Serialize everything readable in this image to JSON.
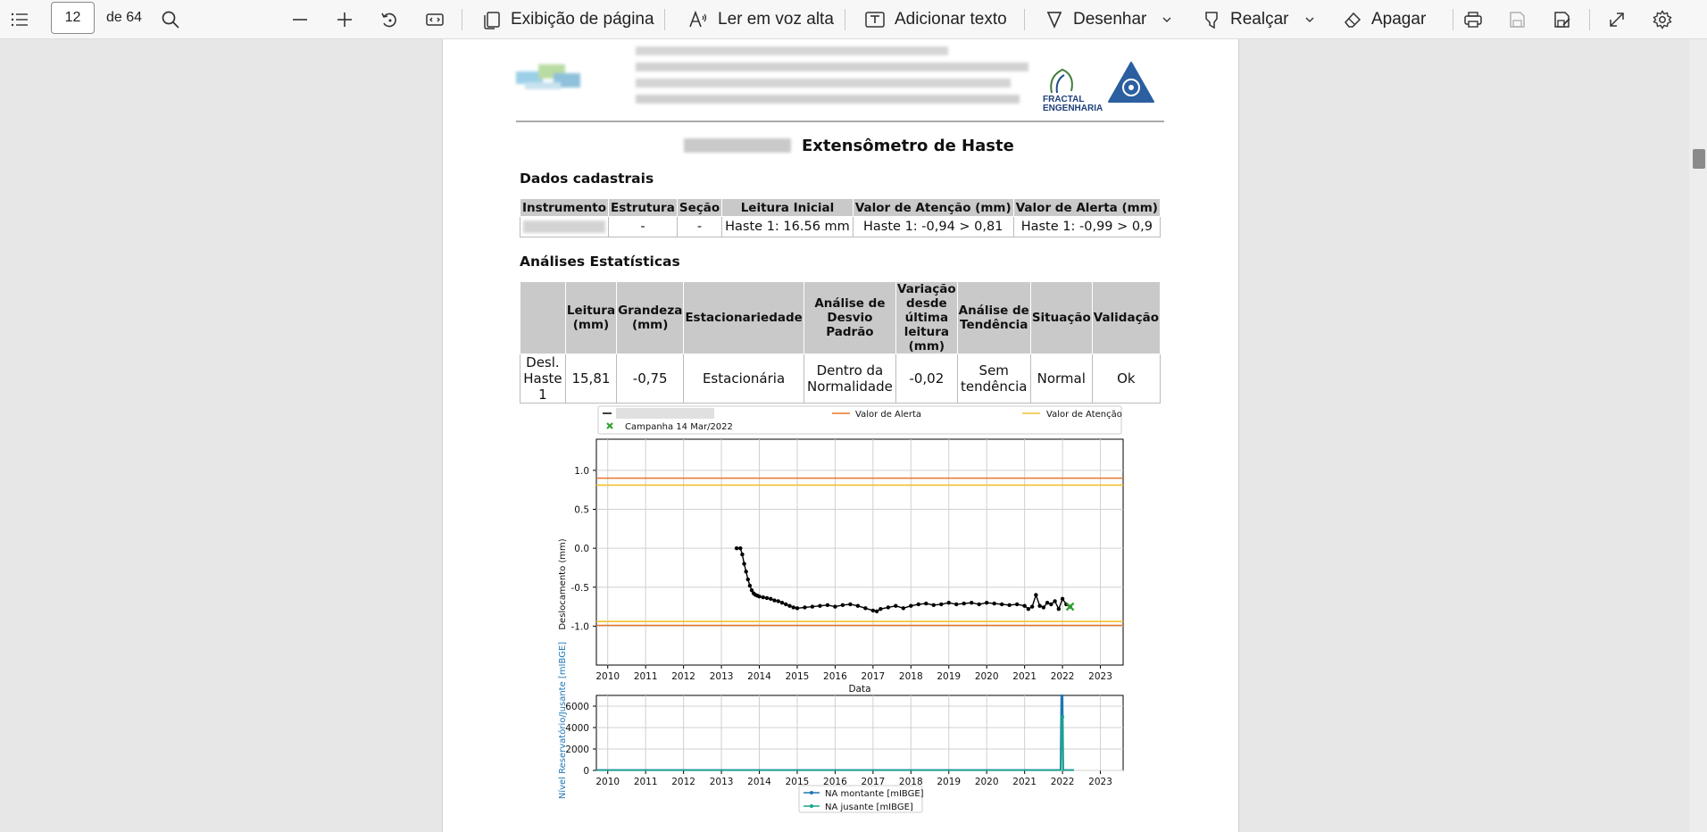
{
  "toolbar": {
    "page_number": "12",
    "page_total": "de 64",
    "page_view_label": "Exibição de página",
    "read_aloud_label": "Ler em voz alta",
    "add_text_label": "Adicionar texto",
    "draw_label": "Desenhar",
    "highlight_label": "Realçar",
    "erase_label": "Apagar",
    "icons": [
      "contents-icon",
      "search-icon",
      "zoom-out-icon",
      "zoom-in-icon",
      "rotate-icon",
      "fit-page-icon",
      "page-view-icon",
      "read-aloud-icon",
      "add-text-icon",
      "draw-icon",
      "highlight-icon",
      "erase-icon",
      "print-icon",
      "save-icon",
      "save-as-icon",
      "fullscreen-icon",
      "settings-icon"
    ]
  },
  "document": {
    "logo_text": [
      "FRACTAL",
      "ENGENHARIA"
    ],
    "title": "Extensômetro de Haste",
    "section_registration": "Dados cadastrais",
    "registration_headers": [
      "Instrumento",
      "Estrutura",
      "Seção",
      "Leitura Inicial",
      "Valor de Atenção (mm)",
      "Valor de Alerta (mm)"
    ],
    "registration_row": [
      "",
      "-",
      "-",
      "Haste 1: 16.56 mm",
      "Haste 1: -0,94 > 0,81",
      "Haste 1: -0,99 > 0,9"
    ],
    "section_stats": "Análises Estatísticas",
    "stats_headers": [
      "",
      "Leitura (mm)",
      "Grandeza (mm)",
      "Estacionariedade",
      "Análise de Desvio Padrão",
      "Variação desde última leitura (mm)",
      "Análise de Tendência",
      "Situação",
      "Validação"
    ],
    "stats_row": [
      "Desl. Haste 1",
      "15,81",
      "-0,75",
      "Estacionária",
      "Dentro da Normalidade",
      "-0,02",
      "Sem tendência",
      "Normal",
      "Ok"
    ]
  },
  "chart_data": [
    {
      "type": "line",
      "xlabel": "Data",
      "ylabel": "Deslocamento (mm)",
      "xlim": [
        2009.7,
        2023.6
      ],
      "ylim": [
        -1.5,
        1.4
      ],
      "xticks": [
        "2010",
        "2011",
        "2012",
        "2013",
        "2014",
        "2015",
        "2016",
        "2017",
        "2018",
        "2019",
        "2020",
        "2021",
        "2022",
        "2023"
      ],
      "yticks": [
        "1.0",
        "0.5",
        "0.0",
        "-0.5",
        "-1.0"
      ],
      "grid": true,
      "legend_position": "top",
      "legend": [
        "Valor de Alerta",
        "Valor de Atenção",
        "Campanha 14 Mar/2022"
      ],
      "colors": {
        "series": "#000000",
        "alert": "#e8762b",
        "attention": "#f2c12e",
        "campaign": "#2ca02c"
      },
      "hlines": {
        "alert": [
          0.9,
          -0.99
        ],
        "attention": [
          0.81,
          -0.94
        ]
      },
      "campaign_point": {
        "x": 2022.2,
        "y": -0.75
      },
      "series": [
        {
          "x": [
            2013.4,
            2013.5,
            2013.55,
            2013.6,
            2013.65,
            2013.7,
            2013.75,
            2013.8,
            2013.85,
            2013.9,
            2013.95,
            2014.0,
            2014.1,
            2014.2,
            2014.3,
            2014.4,
            2014.5,
            2014.6,
            2014.7,
            2014.8,
            2014.9,
            2015.0,
            2015.2,
            2015.4,
            2015.6,
            2015.8,
            2016.0,
            2016.2,
            2016.4,
            2016.6,
            2016.8,
            2017.0,
            2017.1,
            2017.2,
            2017.4,
            2017.6,
            2017.8,
            2018.0,
            2018.2,
            2018.4,
            2018.6,
            2018.8,
            2019.0,
            2019.2,
            2019.4,
            2019.6,
            2019.8,
            2020.0,
            2020.2,
            2020.4,
            2020.6,
            2020.8,
            2021.0,
            2021.1,
            2021.2,
            2021.3,
            2021.4,
            2021.5,
            2021.6,
            2021.7,
            2021.8,
            2021.9,
            2022.0,
            2022.1,
            2022.2
          ],
          "y": [
            0.0,
            0.0,
            -0.08,
            -0.2,
            -0.3,
            -0.4,
            -0.48,
            -0.54,
            -0.58,
            -0.6,
            -0.61,
            -0.62,
            -0.63,
            -0.64,
            -0.65,
            -0.67,
            -0.68,
            -0.7,
            -0.72,
            -0.74,
            -0.76,
            -0.77,
            -0.76,
            -0.75,
            -0.74,
            -0.73,
            -0.75,
            -0.73,
            -0.72,
            -0.74,
            -0.77,
            -0.8,
            -0.81,
            -0.78,
            -0.76,
            -0.74,
            -0.77,
            -0.74,
            -0.72,
            -0.71,
            -0.73,
            -0.72,
            -0.7,
            -0.72,
            -0.71,
            -0.7,
            -0.72,
            -0.7,
            -0.71,
            -0.72,
            -0.73,
            -0.72,
            -0.74,
            -0.78,
            -0.75,
            -0.6,
            -0.74,
            -0.76,
            -0.7,
            -0.72,
            -0.68,
            -0.78,
            -0.65,
            -0.72,
            -0.75
          ]
        }
      ]
    },
    {
      "type": "line",
      "ylabel": "Nível Reservatório/Jusante [mIBGE]",
      "xlim": [
        2009.7,
        2023.6
      ],
      "ylim": [
        0,
        7000
      ],
      "xticks": [
        "2010",
        "2011",
        "2012",
        "2013",
        "2014",
        "2015",
        "2016",
        "2017",
        "2018",
        "2019",
        "2020",
        "2021",
        "2022",
        "2023"
      ],
      "yticks": [
        "6000",
        "4000",
        "2000",
        "0"
      ],
      "grid": true,
      "legend_position": "bottom",
      "colors": {
        "montante": "#1f77b4",
        "jusante": "#17a589"
      },
      "series": [
        {
          "name": "NA montante [mIBGE]",
          "x": [
            2009.7,
            2021.95,
            2021.97,
            2022.0,
            2022.02,
            2022.3
          ],
          "y": [
            30,
            30,
            7000,
            7000,
            30,
            30
          ]
        },
        {
          "name": "NA jusante [mIBGE]",
          "x": [
            2009.7,
            2021.96,
            2021.98,
            2022.0,
            2022.02,
            2022.3
          ],
          "y": [
            20,
            20,
            5000,
            5000,
            20,
            20
          ]
        }
      ]
    }
  ]
}
